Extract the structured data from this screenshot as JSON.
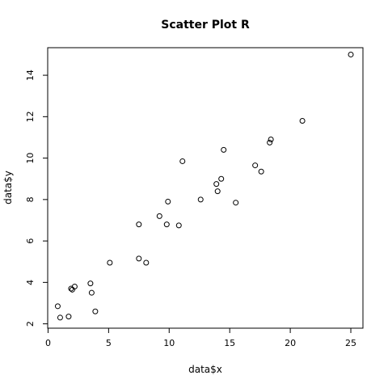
{
  "chart_data": {
    "type": "scatter",
    "title": "Scatter Plot R",
    "xlabel": "data$x",
    "ylabel": "data$y",
    "xlim": [
      -0.03,
      26.0
    ],
    "ylim": [
      1.79,
      15.33
    ],
    "xticks": [
      0,
      5,
      10,
      15,
      20,
      25
    ],
    "yticks": [
      2,
      4,
      6,
      8,
      10,
      12,
      14
    ],
    "grid": false,
    "legend": "none",
    "point_color": "#000000",
    "points": [
      {
        "x": 0.8,
        "y": 2.85
      },
      {
        "x": 1.0,
        "y": 2.3
      },
      {
        "x": 1.7,
        "y": 2.35
      },
      {
        "x": 1.9,
        "y": 3.7
      },
      {
        "x": 2.0,
        "y": 3.65
      },
      {
        "x": 2.2,
        "y": 3.8
      },
      {
        "x": 3.5,
        "y": 3.95
      },
      {
        "x": 3.6,
        "y": 3.5
      },
      {
        "x": 3.9,
        "y": 2.6
      },
      {
        "x": 5.1,
        "y": 4.95
      },
      {
        "x": 7.5,
        "y": 5.15
      },
      {
        "x": 7.5,
        "y": 6.8
      },
      {
        "x": 8.1,
        "y": 4.95
      },
      {
        "x": 9.2,
        "y": 7.2
      },
      {
        "x": 9.8,
        "y": 6.8
      },
      {
        "x": 9.9,
        "y": 7.9
      },
      {
        "x": 10.8,
        "y": 6.75
      },
      {
        "x": 11.1,
        "y": 9.85
      },
      {
        "x": 12.6,
        "y": 8.0
      },
      {
        "x": 13.9,
        "y": 8.75
      },
      {
        "x": 14.0,
        "y": 8.4
      },
      {
        "x": 14.3,
        "y": 9.0
      },
      {
        "x": 14.5,
        "y": 10.4
      },
      {
        "x": 15.5,
        "y": 7.85
      },
      {
        "x": 17.1,
        "y": 9.65
      },
      {
        "x": 17.6,
        "y": 9.35
      },
      {
        "x": 18.3,
        "y": 10.75
      },
      {
        "x": 18.4,
        "y": 10.9
      },
      {
        "x": 21.0,
        "y": 11.8
      },
      {
        "x": 25.0,
        "y": 15.0
      }
    ]
  }
}
